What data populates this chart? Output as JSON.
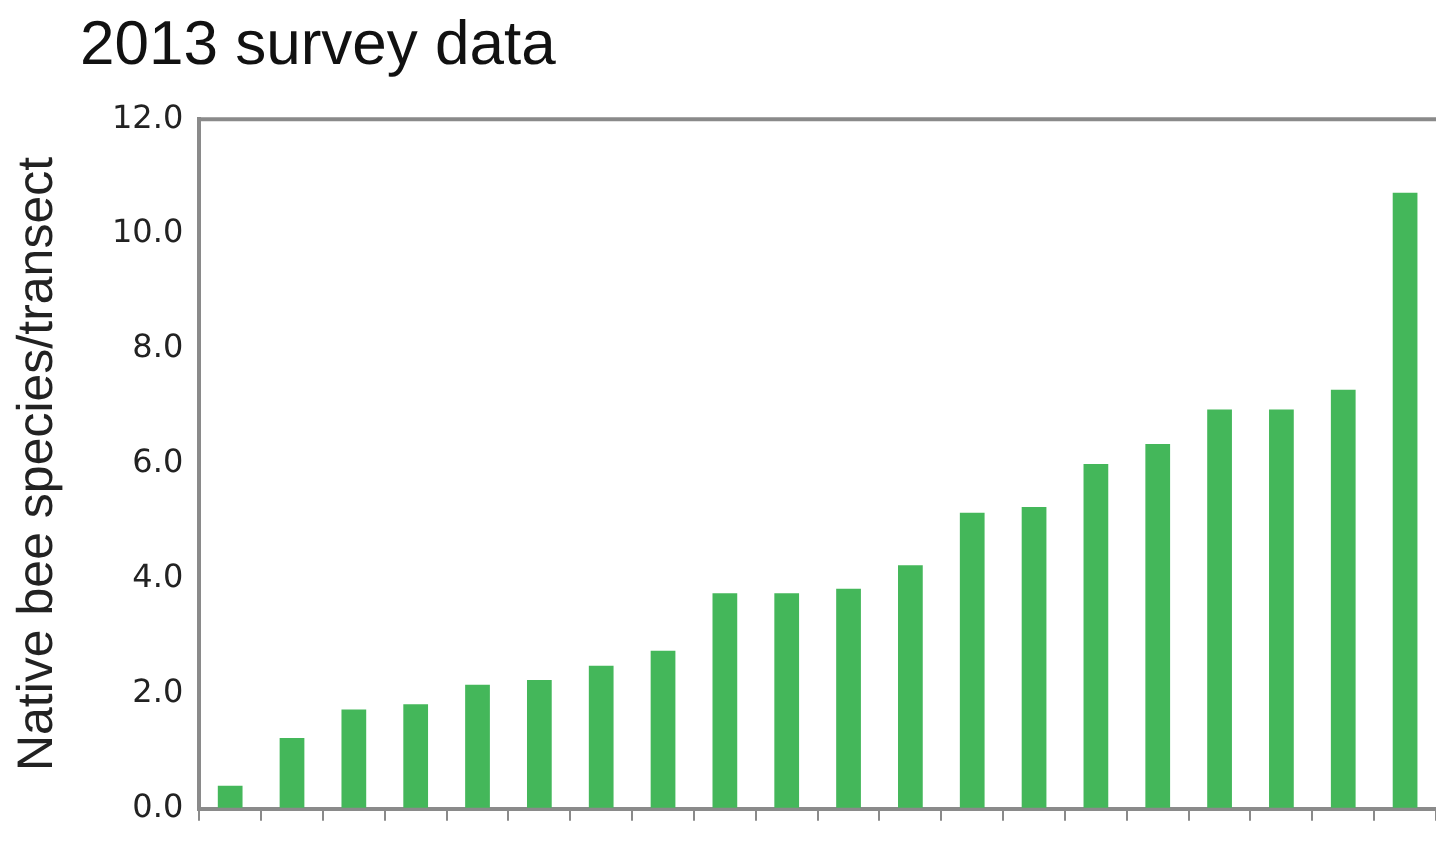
{
  "chart_data": {
    "type": "bar",
    "title": "2013 survey data",
    "ylabel": "Native bee species/transect",
    "categories": [
      null,
      null,
      null,
      null,
      null,
      null,
      null,
      null,
      null,
      null,
      null,
      null,
      null,
      null,
      null,
      null,
      null,
      null,
      null,
      null
    ],
    "values": [
      0.4,
      1.23,
      1.73,
      1.82,
      2.16,
      2.24,
      2.49,
      2.75,
      3.75,
      3.75,
      3.83,
      4.24,
      5.15,
      5.25,
      6.0,
      6.35,
      6.95,
      6.95,
      7.29,
      10.72
    ],
    "color": "#44b75a",
    "ylim": [
      0,
      12
    ],
    "yticks": [
      {
        "value": 0,
        "label": "0.0"
      },
      {
        "value": 2,
        "label": "2.0"
      },
      {
        "value": 4,
        "label": "4.0"
      },
      {
        "value": 6,
        "label": "6.0"
      },
      {
        "value": 8,
        "label": "8.0"
      },
      {
        "value": 10,
        "label": "10.0"
      },
      {
        "value": 12,
        "label": "12.0"
      }
    ],
    "grid": false,
    "legend": false
  }
}
